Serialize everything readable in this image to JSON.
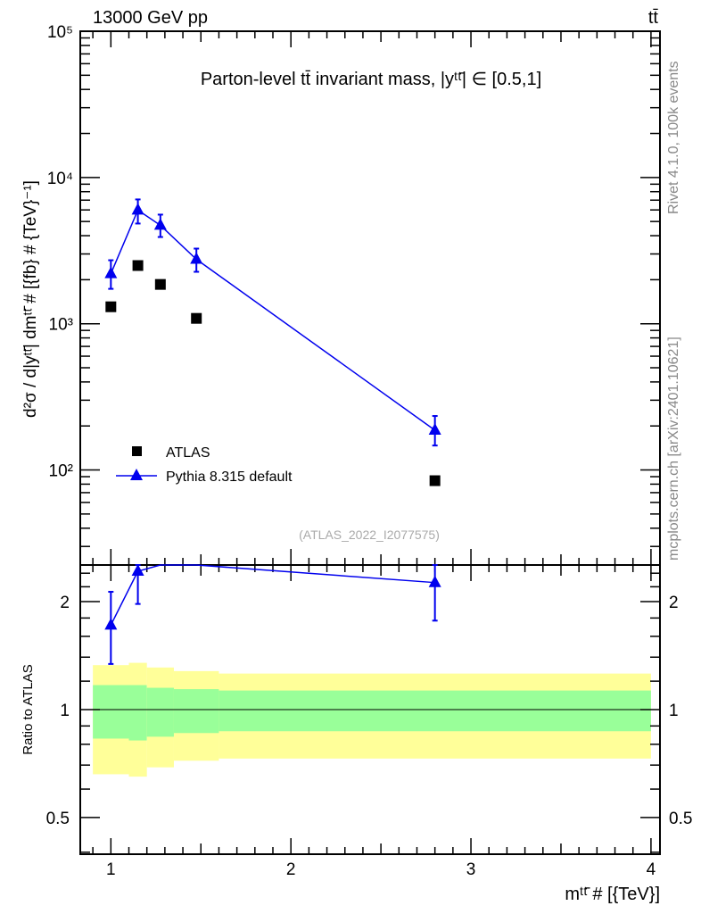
{
  "header": {
    "left": "13000 GeV pp",
    "right": "tt̄"
  },
  "side": {
    "top": "Rivet 4.1.0,  100k events",
    "bottom": "mcplots.cern.ch [arXiv:2401.10621]"
  },
  "chart_data": [
    {
      "type": "scatter",
      "title": "Parton-level tt̄ invariant mass, |yᵗᵗ̄| ∈ [0.5,1]",
      "ylabel": "d²σ / d|yᵗᵗ̄| dmᵗᵗ̄ # [{fb} # {TeV}⁻¹]",
      "yscale": "log",
      "ylim": [
        22.4,
        100000
      ],
      "xlim": [
        0.83,
        4.05
      ],
      "yticks": [
        {
          "v": 100,
          "label": "10²"
        },
        {
          "v": 1000,
          "label": "10³"
        },
        {
          "v": 10000,
          "label": "10⁴"
        },
        {
          "v": 100000,
          "label": "10⁵"
        }
      ],
      "analysis": "(ATLAS_2022_I2077575)",
      "legend_position": "center-left",
      "series": [
        {
          "name": "ATLAS",
          "color": "#000000",
          "marker": "square",
          "x": [
            1.0,
            1.15,
            1.275,
            1.475,
            2.8
          ],
          "y": [
            1306,
            2500,
            1857,
            1088,
            84.5
          ]
        },
        {
          "name": "Pythia 8.315 default",
          "color": "#0000ee",
          "marker": "triangle",
          "line": true,
          "x": [
            1.0,
            1.15,
            1.275,
            1.475,
            2.8
          ],
          "y": [
            2200,
            5985,
            4710,
            2757,
            187
          ],
          "yerr_low": [
            1732,
            4843,
            3917,
            2265,
            147
          ],
          "yerr_high": [
            2718,
            7080,
            5573,
            3264,
            234
          ]
        }
      ]
    },
    {
      "type": "scatter",
      "ylabel": "Ratio to ATLAS",
      "xlabel": "mᵗᵗ̄ # [{TeV}]",
      "yscale": "log",
      "ylim": [
        0.395,
        2.53
      ],
      "xlim": [
        0.83,
        4.05
      ],
      "xticks": [
        1,
        2,
        3,
        4
      ],
      "yticks": [
        {
          "v": 0.5,
          "label": "0.5"
        },
        {
          "v": 1,
          "label": "1"
        },
        {
          "v": 2,
          "label": "2"
        }
      ],
      "bands": {
        "edges": [
          0.9,
          1.1,
          1.2,
          1.35,
          1.6,
          4.0
        ],
        "yellow_low": [
          0.66,
          0.65,
          0.69,
          0.72,
          0.73
        ],
        "yellow_high": [
          1.33,
          1.35,
          1.31,
          1.28,
          1.26
        ],
        "green_low": [
          0.83,
          0.82,
          0.84,
          0.86,
          0.87
        ],
        "green_high": [
          1.17,
          1.17,
          1.15,
          1.14,
          1.13
        ],
        "yellow_color": "#ffff99",
        "green_color": "#99ff99"
      },
      "series": [
        {
          "name": "Pythia 8.315 default",
          "color": "#0000ee",
          "x": [
            1.0,
            1.15,
            1.275,
            1.475,
            2.8
          ],
          "y": [
            1.72,
            2.43,
            2.55,
            2.55,
            2.26
          ],
          "yerr_low": [
            1.34,
            1.97,
            null,
            null,
            1.77
          ],
          "yerr_high": [
            2.13,
            2.9,
            null,
            null,
            2.8
          ]
        }
      ]
    }
  ]
}
